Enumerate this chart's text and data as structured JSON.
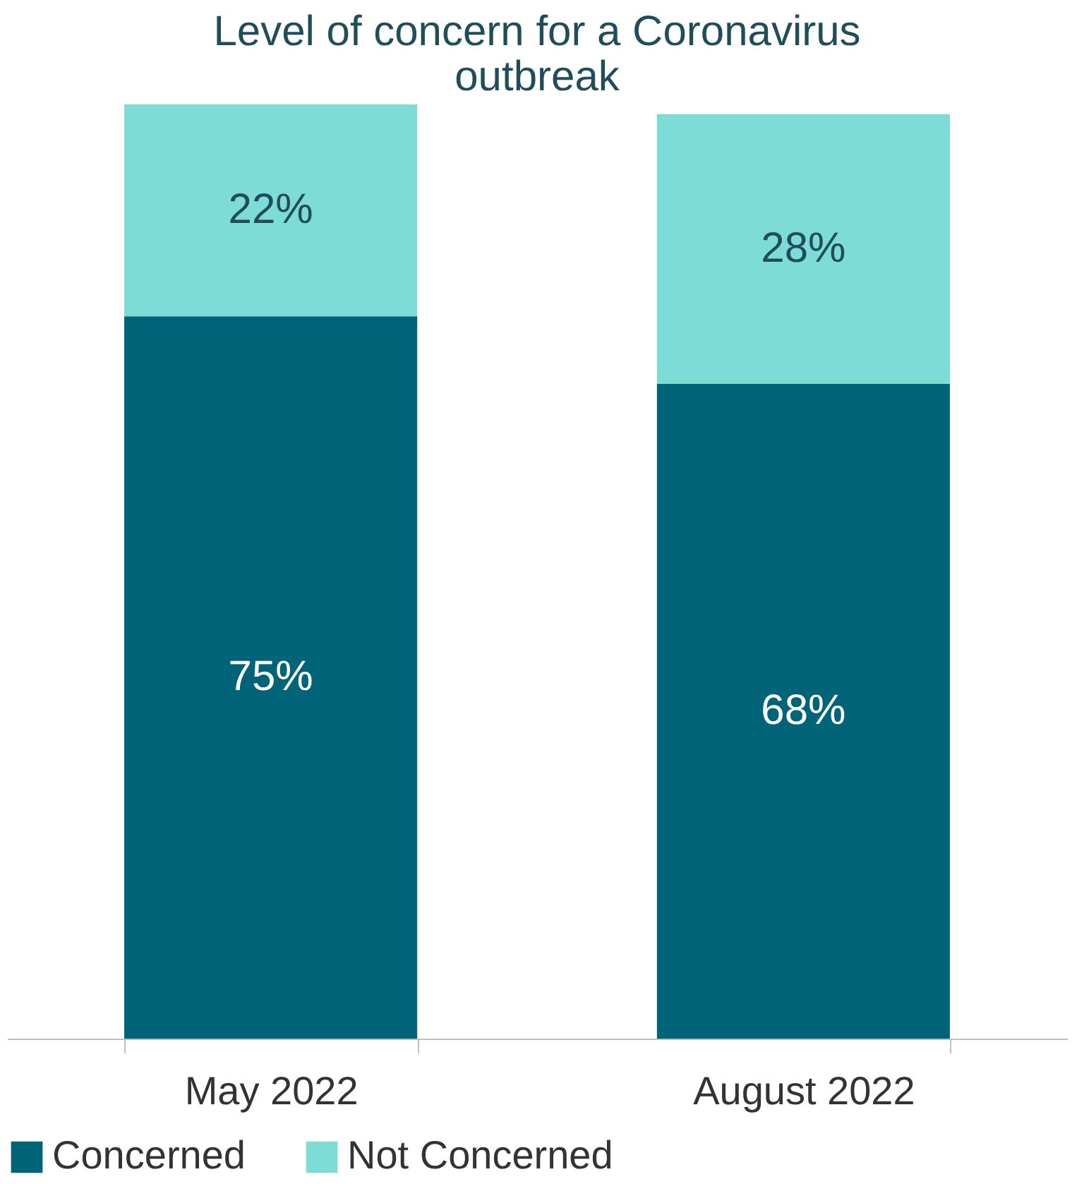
{
  "chart_data": {
    "type": "bar",
    "title": "Level of concern for a Coronavirus outbreak",
    "categories": [
      "May 2022",
      "August 2022"
    ],
    "stacked": true,
    "legend": "bottom",
    "grid": false,
    "series": [
      {
        "name": "Concerned",
        "color": "#006479",
        "values": [
          75,
          68
        ],
        "value_labels": [
          "75%",
          "68%"
        ]
      },
      {
        "name": "Not Concerned",
        "color": "#7ddcd5",
        "values": [
          22,
          28
        ],
        "value_labels": [
          "22%",
          "28%"
        ]
      }
    ]
  }
}
